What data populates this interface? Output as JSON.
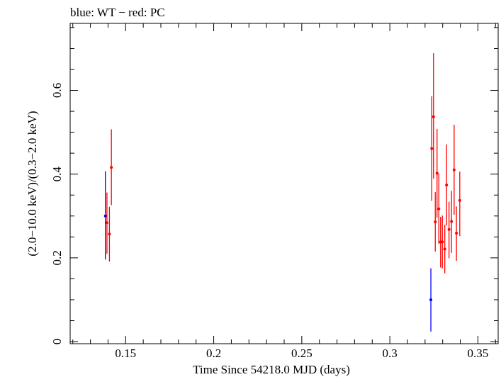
{
  "chart_data": {
    "type": "scatter",
    "title": "blue: WT − red: PC",
    "xlabel": "Time Since 54218.0 MJD (days)",
    "ylabel": "(2.0−10.0 keV)/(0.3−2.0 keV)",
    "xlim": [
      0.1185,
      0.3615
    ],
    "ylim": [
      -0.005,
      0.76
    ],
    "x_ticks": [
      0.15,
      0.2,
      0.25,
      0.3,
      0.35
    ],
    "x_tick_labels": [
      "0.15",
      "0.2",
      "0.25",
      "0.3",
      "0.35"
    ],
    "y_ticks": [
      0,
      0.2,
      0.4,
      0.6
    ],
    "y_tick_labels": [
      "0",
      "0.2",
      "0.4",
      "0.6"
    ],
    "grid": false,
    "legend": "none",
    "series": [
      {
        "color": "#0000ff",
        "points": [
          {
            "x": 0.1385,
            "y": 0.3,
            "ylo": 0.196,
            "yhi": 0.407
          },
          {
            "x": 0.3233,
            "y": 0.1,
            "ylo": 0.024,
            "yhi": 0.175
          }
        ]
      },
      {
        "color": "#ff0000",
        "points": [
          {
            "x": 0.1394,
            "y": 0.284,
            "ylo": 0.21,
            "yhi": 0.356
          },
          {
            "x": 0.1408,
            "y": 0.257,
            "ylo": 0.191,
            "yhi": 0.322
          },
          {
            "x": 0.1419,
            "y": 0.416,
            "ylo": 0.326,
            "yhi": 0.507
          },
          {
            "x": 0.3238,
            "y": 0.461,
            "ylo": 0.336,
            "yhi": 0.586
          },
          {
            "x": 0.3248,
            "y": 0.537,
            "ylo": 0.389,
            "yhi": 0.689
          },
          {
            "x": 0.3258,
            "y": 0.286,
            "ylo": 0.215,
            "yhi": 0.357
          },
          {
            "x": 0.3268,
            "y": 0.402,
            "ylo": 0.296,
            "yhi": 0.508
          },
          {
            "x": 0.3278,
            "y": 0.317,
            "ylo": 0.233,
            "yhi": 0.401
          },
          {
            "x": 0.3288,
            "y": 0.238,
            "ylo": 0.177,
            "yhi": 0.298
          },
          {
            "x": 0.3298,
            "y": 0.238,
            "ylo": 0.175,
            "yhi": 0.301
          },
          {
            "x": 0.3312,
            "y": 0.221,
            "ylo": 0.163,
            "yhi": 0.279
          },
          {
            "x": 0.3322,
            "y": 0.374,
            "ylo": 0.277,
            "yhi": 0.471
          },
          {
            "x": 0.3336,
            "y": 0.268,
            "ylo": 0.199,
            "yhi": 0.334
          },
          {
            "x": 0.335,
            "y": 0.287,
            "ylo": 0.212,
            "yhi": 0.36
          },
          {
            "x": 0.3365,
            "y": 0.41,
            "ylo": 0.303,
            "yhi": 0.518
          },
          {
            "x": 0.3378,
            "y": 0.259,
            "ylo": 0.193,
            "yhi": 0.323
          },
          {
            "x": 0.3397,
            "y": 0.337,
            "ylo": 0.252,
            "yhi": 0.406
          }
        ]
      }
    ]
  }
}
